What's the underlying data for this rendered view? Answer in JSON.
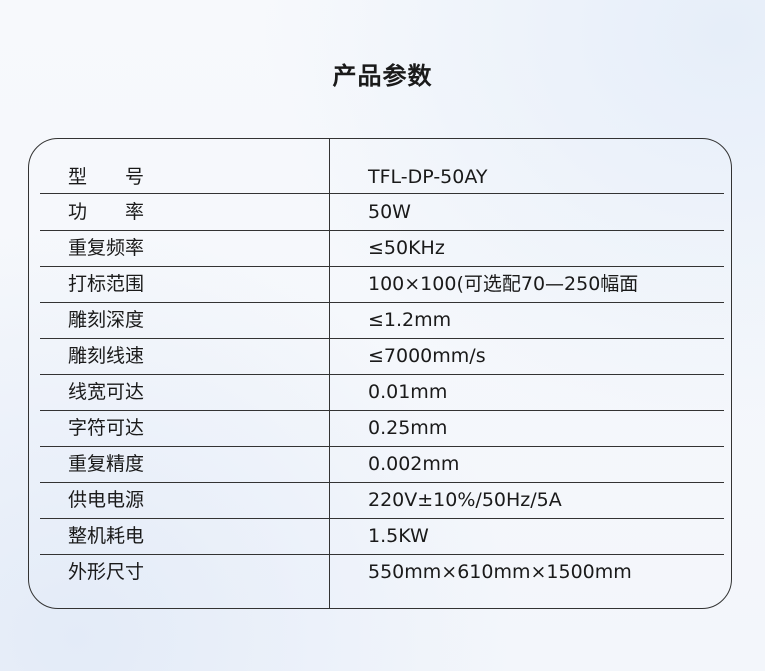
{
  "title": "产品参数",
  "rows": [
    {
      "label": "型　　号",
      "value": "TFL-DP-50AY"
    },
    {
      "label": "功　　率",
      "value": "50W"
    },
    {
      "label": "重复频率",
      "value": "≤50KHz"
    },
    {
      "label": "打标范围",
      "value": "100×100(可选配70—250幅面"
    },
    {
      "label": "雕刻深度",
      "value": "≤1.2mm"
    },
    {
      "label": "雕刻线速",
      "value": "≤7000mm/s"
    },
    {
      "label": "线宽可达",
      "value": "0.01mm"
    },
    {
      "label": "字符可达",
      "value": "0.25mm"
    },
    {
      "label": "重复精度",
      "value": "0.002mm"
    },
    {
      "label": "供电电源",
      "value": "220V±10%/50Hz/5A"
    },
    {
      "label": "整机耗电",
      "value": "1.5KW"
    },
    {
      "label": "外形尺寸",
      "value": "550mm×610mm×1500mm"
    }
  ]
}
